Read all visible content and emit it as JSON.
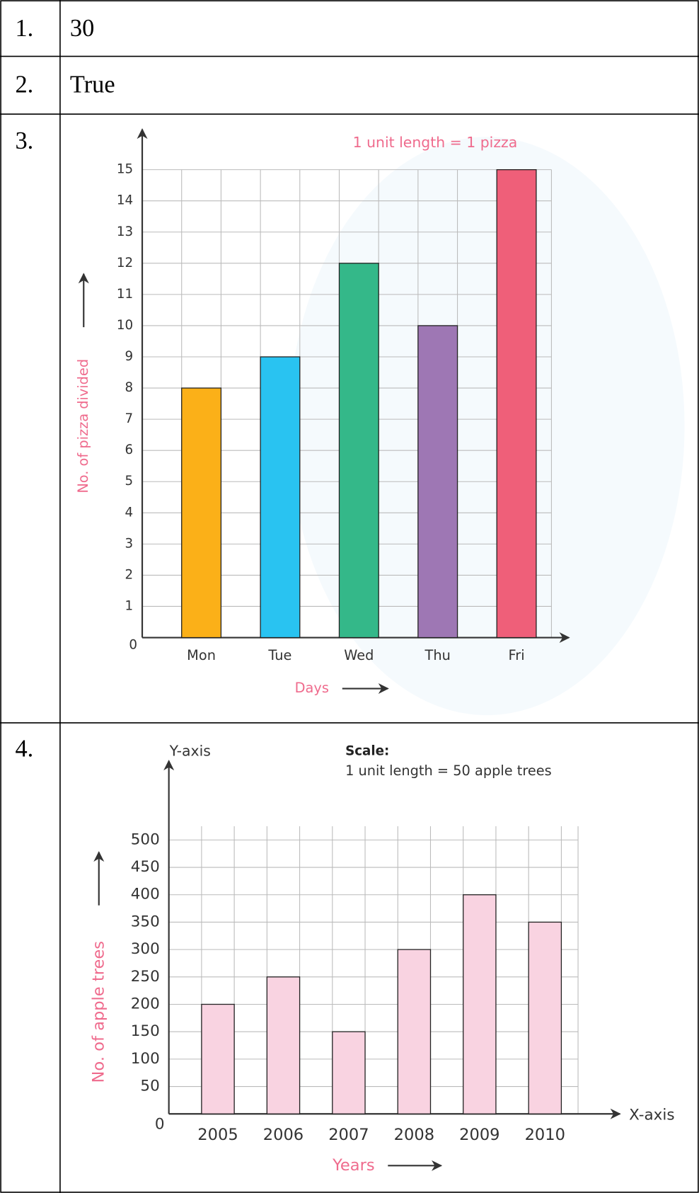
{
  "table": {
    "rows": [
      {
        "label": "1.",
        "text": "30"
      },
      {
        "label": "2.",
        "text": "True"
      },
      {
        "label": "3.",
        "chart": {
          "type": "bar",
          "title": "1 unit length = 1 pizza",
          "x_label": "Days",
          "y_label": "No. of pizza divided",
          "categories": [
            "Mon",
            "Tue",
            "Wed",
            "Thu",
            "Fri"
          ],
          "values": [
            8,
            9,
            12,
            10,
            15
          ],
          "colors": [
            "#fbb018",
            "#29c3f1",
            "#34b889",
            "#9e77b4",
            "#ef5f79"
          ],
          "ylim": [
            0,
            15
          ],
          "yticks": [
            0,
            1,
            2,
            3,
            4,
            5,
            6,
            7,
            8,
            9,
            10,
            11,
            12,
            13,
            14,
            15
          ],
          "grid": true
        }
      },
      {
        "label": "4.",
        "chart": {
          "type": "bar",
          "title": "Scale:",
          "subtitle": "1 unit length = 50 apple trees",
          "x_label": "Years",
          "y_label": "No. of apple trees",
          "x_axis_label": "X-axis",
          "y_axis_label": "Y-axis",
          "categories": [
            "2005",
            "2006",
            "2007",
            "2008",
            "2009",
            "2010"
          ],
          "values": [
            200,
            250,
            150,
            300,
            400,
            350
          ],
          "color": "#f9d3e1",
          "ylim": [
            0,
            500
          ],
          "yticks": [
            0,
            50,
            100,
            150,
            200,
            250,
            300,
            350,
            400,
            450,
            500
          ],
          "grid": true
        }
      }
    ]
  }
}
